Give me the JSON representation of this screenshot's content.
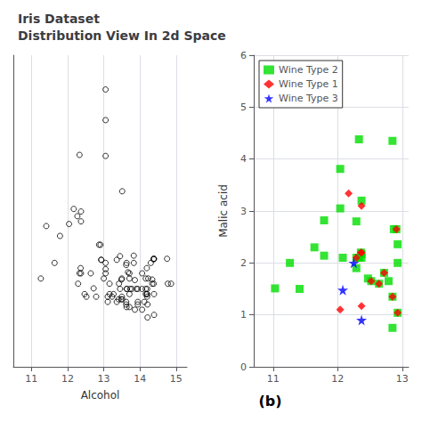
{
  "chart_data": [
    {
      "type": "scatter",
      "title": "Iris Dataset\nDistribution View In 2d Space",
      "xlabel": "Alcohol",
      "x": [
        12.93,
        13.05,
        12.87,
        12.91,
        12.64,
        12.79,
        12.72,
        12.52,
        12.47,
        12.37,
        12.37,
        12.37,
        12.36,
        12.33,
        12.33,
        12.29,
        12.27,
        12.17,
        12.04,
        11.79,
        11.64,
        11.41,
        11.26,
        13.05,
        13.05,
        13.05,
        13.05,
        13.05,
        13.0,
        12.93,
        13.27,
        13.36,
        13.36,
        13.41,
        13.42,
        13.45,
        13.45,
        13.48,
        13.49,
        13.5,
        13.5,
        13.51,
        13.51,
        13.62,
        13.62,
        13.62,
        13.63,
        13.63,
        13.63,
        13.64,
        13.67,
        13.71,
        13.71,
        13.71,
        13.71,
        13.73,
        13.78,
        13.83,
        13.83,
        13.86,
        13.86,
        13.9,
        13.94,
        13.94,
        13.94,
        14.06,
        14.06,
        14.06,
        14.12,
        14.16,
        14.16,
        14.16,
        14.19,
        14.19,
        14.2,
        14.2,
        14.2,
        14.21,
        14.21,
        14.23,
        14.3,
        14.34,
        14.34,
        14.38,
        14.38,
        14.38,
        14.39,
        14.39,
        14.39,
        13.11,
        13.11,
        13.16,
        13.16,
        13.23,
        14.75,
        14.77,
        14.86
      ],
      "values": [
        2.36,
        4.36,
        2.65,
        2.65,
        2.1,
        1.65,
        1.81,
        1.65,
        1.7,
        3.29,
        3.1,
        2.1,
        2.2,
        4.38,
        2.1,
        1.9,
        3.2,
        3.34,
        3.05,
        2.82,
        2.3,
        3.01,
        2.0,
        5.05,
        5.64,
        2.3,
        2.18,
        2.1,
        2.0,
        2.36,
        1.7,
        2.36,
        1.55,
        1.6,
        1.9,
        2.43,
        1.8,
        1.6,
        1.98,
        2.0,
        1.65,
        3.68,
        1.6,
        2.26,
        1.55,
        1.5,
        2.3,
        1.8,
        1.45,
        1.8,
        2.12,
        2.1,
        2.0,
        1.7,
        1.45,
        1.8,
        1.8,
        2.44,
        2.3,
        1.97,
        1.4,
        1.8,
        1.8,
        1.55,
        1.5,
        2.1,
        1.8,
        1.4,
        1.55,
        2.0,
        1.8,
        1.7,
        2.2,
        1.7,
        1.8,
        1.7,
        1.65,
        1.5,
        1.25,
        2.0,
        2.3,
        1.98,
        1.9,
        2.37,
        2.38,
        1.9,
        2.38,
        1.7,
        1.3,
        1.65,
        1.55,
        1.7,
        1.9,
        1.65,
        2.38,
        1.9,
        1.9
      ],
      "color": "#000000",
      "marker": "circle",
      "xlim": [
        10.5,
        15.3
      ],
      "xticks": [
        11,
        12,
        13,
        14,
        15
      ],
      "ylim": [
        0.3,
        6.3
      ],
      "yticks": [],
      "tick_labels": "x",
      "grid": true
    },
    {
      "type": "scatter",
      "ylabel": "Malic acid",
      "series": [
        {
          "name": "Wine Type 2",
          "color": "#00DD00",
          "marker": "square",
          "x": [
            11.03,
            11.26,
            11.41,
            11.64,
            11.79,
            11.79,
            12.04,
            12.04,
            12.08,
            12.29,
            12.29,
            12.29,
            12.33,
            12.33,
            12.33,
            12.36,
            12.37,
            12.37,
            12.37,
            12.47,
            12.52,
            12.64,
            12.72,
            12.79,
            12.85,
            12.85,
            12.85,
            12.87,
            12.91,
            12.93,
            12.93,
            12.93
          ],
          "values": [
            1.51,
            2.0,
            1.5,
            2.3,
            2.82,
            2.14,
            3.05,
            3.81,
            2.1,
            1.9,
            2.1,
            2.8,
            4.38,
            2.1,
            2.1,
            2.2,
            3.2,
            2.17,
            2.1,
            1.7,
            1.65,
            1.6,
            1.81,
            1.65,
            4.35,
            1.35,
            0.75,
            2.65,
            2.65,
            2.36,
            1.04,
            2.0
          ]
        },
        {
          "name": "Wine Type 1",
          "color": "#ff0000",
          "marker": "diamond",
          "x": [
            12.85,
            12.93,
            12.64,
            12.72,
            12.52,
            12.37,
            12.37,
            12.36,
            12.37,
            12.29,
            12.17,
            12.04,
            12.91
          ],
          "values": [
            1.35,
            1.04,
            1.6,
            1.81,
            1.65,
            3.1,
            2.2,
            2.2,
            1.17,
            2.1,
            3.34,
            1.1,
            2.65
          ]
        },
        {
          "name": "Wine Type 3",
          "color": "#0000ff",
          "marker": "star",
          "x": [
            12.25,
            12.37,
            12.08
          ],
          "values": [
            2.0,
            0.9,
            1.48
          ]
        }
      ],
      "xlim": [
        10.7,
        13.1
      ],
      "xticks": [
        11,
        12,
        13
      ],
      "ylim": [
        0,
        6
      ],
      "yticks": [
        0,
        1,
        2,
        3,
        4,
        5,
        6
      ],
      "grid": true,
      "legend": "upper left",
      "annotations": [
        "(b)"
      ]
    }
  ]
}
